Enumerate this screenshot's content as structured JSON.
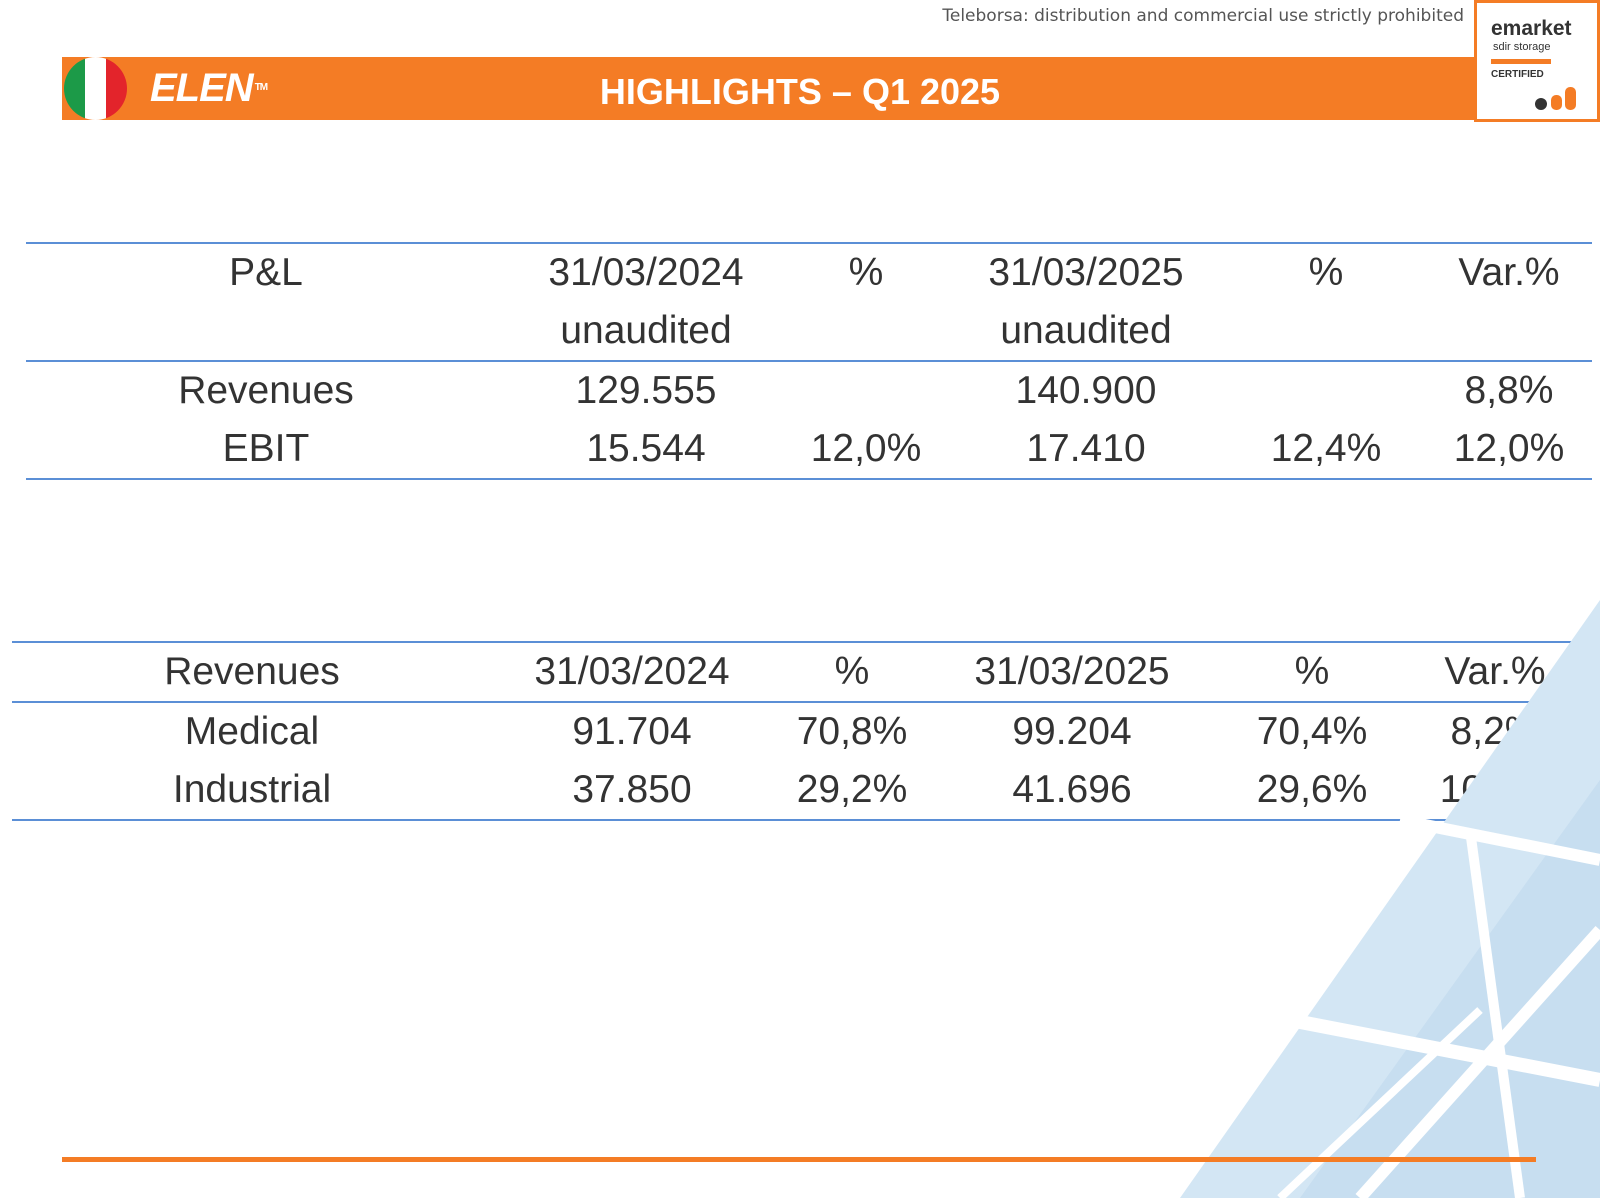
{
  "watermark": "Teleborsa: distribution and commercial use strictly prohibited",
  "header": {
    "brand": "ELEN",
    "brand_tm": "TM",
    "title": "HIGHLIGHTS – Q1 2025",
    "accent_color": "#f47c25"
  },
  "badge": {
    "line1": "emarket",
    "line2": "sdir storage",
    "line3": "CERTIFIED"
  },
  "pl_table": {
    "headers": [
      "P&L",
      "31/03/2024",
      "%",
      "31/03/2025",
      "%",
      "Var.%"
    ],
    "subheaders": [
      "",
      "unaudited",
      "",
      "unaudited",
      "",
      ""
    ],
    "rows": [
      [
        "Revenues",
        "129.555",
        "",
        "140.900",
        "",
        "8,8%"
      ],
      [
        "EBIT",
        "15.544",
        "12,0%",
        "17.410",
        "12,4%",
        "12,0%"
      ]
    ]
  },
  "revenue_table": {
    "headers": [
      "Revenues",
      "31/03/2024",
      "%",
      "31/03/2025",
      "%",
      "Var.%"
    ],
    "rows": [
      [
        "Medical",
        "91.704",
        "70,8%",
        "99.204",
        "70,4%",
        "8,2%"
      ],
      [
        "Industrial",
        "37.850",
        "29,2%",
        "41.696",
        "29,6%",
        "10,2%"
      ]
    ]
  }
}
